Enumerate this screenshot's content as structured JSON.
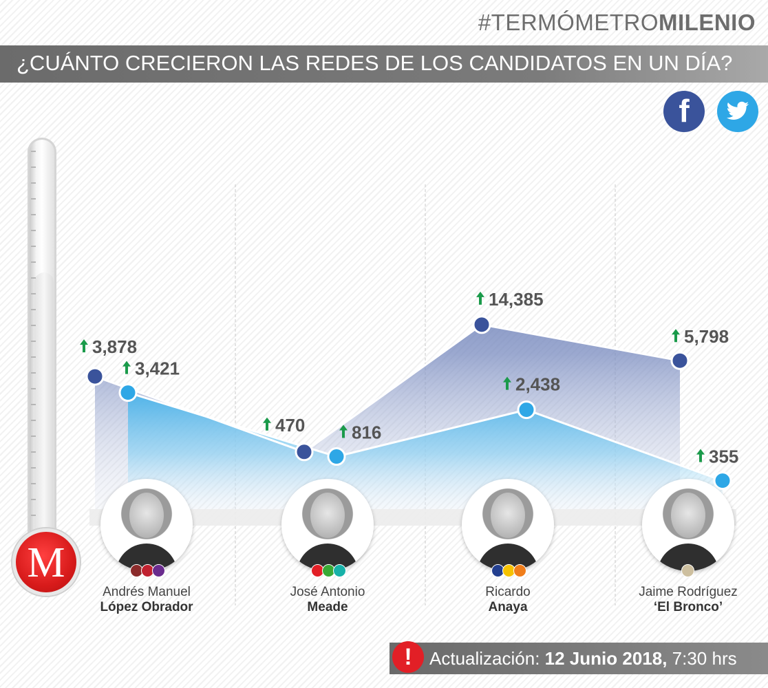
{
  "header": {
    "brand_prefix": "#TERMÓMETRO",
    "brand_bold": "MILENIO",
    "title": "¿CUÁNTO CRECIERON LAS REDES DE LOS CANDIDATOS EN UN DÍA?"
  },
  "legend": {
    "facebook_icon": "facebook-icon",
    "facebook_glyph": "f",
    "twitter_icon": "twitter-icon"
  },
  "logo_letter": "M",
  "candidates": [
    {
      "first": "Andrés Manuel",
      "last": "López Obrador",
      "party_colors": [
        "#8b2b2b",
        "#c0212f",
        "#6a2c8e"
      ]
    },
    {
      "first": "José Antonio",
      "last": "Meade",
      "party_colors": [
        "#e21f26",
        "#39a935",
        "#17b1a8"
      ]
    },
    {
      "first": "Ricardo",
      "last": "Anaya",
      "party_colors": [
        "#233f8f",
        "#f6c200",
        "#f07d1a"
      ]
    },
    {
      "first": "Jaime Rodríguez",
      "last": "‘El Bronco’",
      "party_colors": [
        "#cdbf9f"
      ]
    }
  ],
  "chart_data": {
    "type": "area",
    "categories": [
      "Andrés Manuel López Obrador",
      "José Antonio Meade",
      "Ricardo Anaya",
      "Jaime Rodríguez ‘El Bronco’"
    ],
    "series": [
      {
        "name": "Facebook",
        "color": "#3a539b",
        "values": [
          3878,
          470,
          14385,
          5798
        ],
        "labels": [
          "3,878",
          "470",
          "14,385",
          "5,798"
        ]
      },
      {
        "name": "Twitter",
        "color": "#2ea7e6",
        "values": [
          3421,
          816,
          2438,
          355
        ],
        "labels": [
          "3,421",
          "816",
          "2,438",
          "355"
        ]
      }
    ],
    "grid": false,
    "label_color": "#555555",
    "arrow_color": "#1a9a4a"
  },
  "footer": {
    "update_label": "Actualización:",
    "update_date": "12 Junio 2018,",
    "update_time": "7:30 hrs",
    "alert_icon": "!"
  }
}
